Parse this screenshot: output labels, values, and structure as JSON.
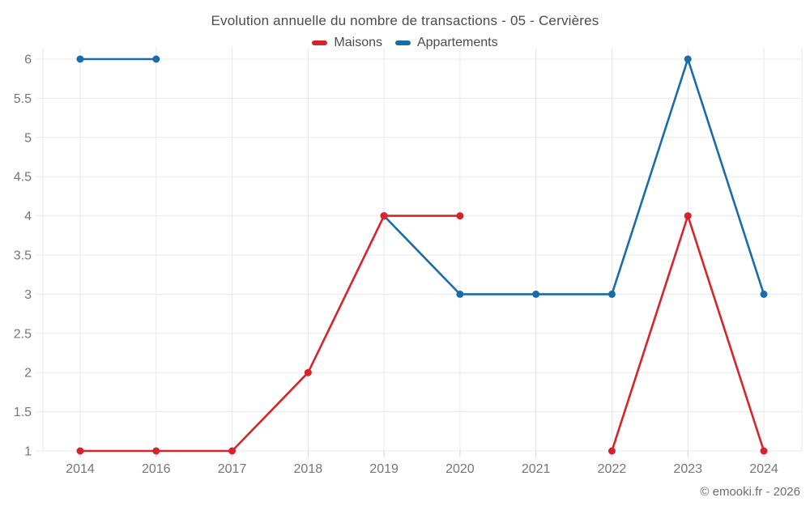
{
  "header": {
    "title": "Evolution annuelle du nombre de transactions - 05 - Cervières"
  },
  "footer": {
    "credit": "© emooki.fr - 2026"
  },
  "colors": {
    "grid": "#e9e9e9",
    "tick": "#d4d4d4",
    "tick_label": "#767676",
    "maisons": "#d7232a",
    "appartements": "#1a6ca6"
  },
  "chart_data": {
    "type": "line",
    "title": "Evolution annuelle du nombre de transactions - 05 - Cervières",
    "categories": [
      "2014",
      "2016",
      "2017",
      "2018",
      "2019",
      "2020",
      "2021",
      "2022",
      "2023",
      "2024"
    ],
    "series": [
      {
        "name": "Maisons",
        "color": "#d7232a",
        "values": [
          1,
          1,
          1,
          2,
          4,
          4,
          null,
          1,
          4,
          1
        ]
      },
      {
        "name": "Appartements",
        "color": "#1a6ca6",
        "values": [
          6,
          6,
          null,
          null,
          4,
          3,
          3,
          3,
          6,
          3
        ]
      }
    ],
    "xlabel": "",
    "ylabel": "",
    "ylim": [
      1,
      6
    ],
    "ytick_step": 0.5,
    "grid": true,
    "legend_position": "top",
    "marker": "circle"
  }
}
